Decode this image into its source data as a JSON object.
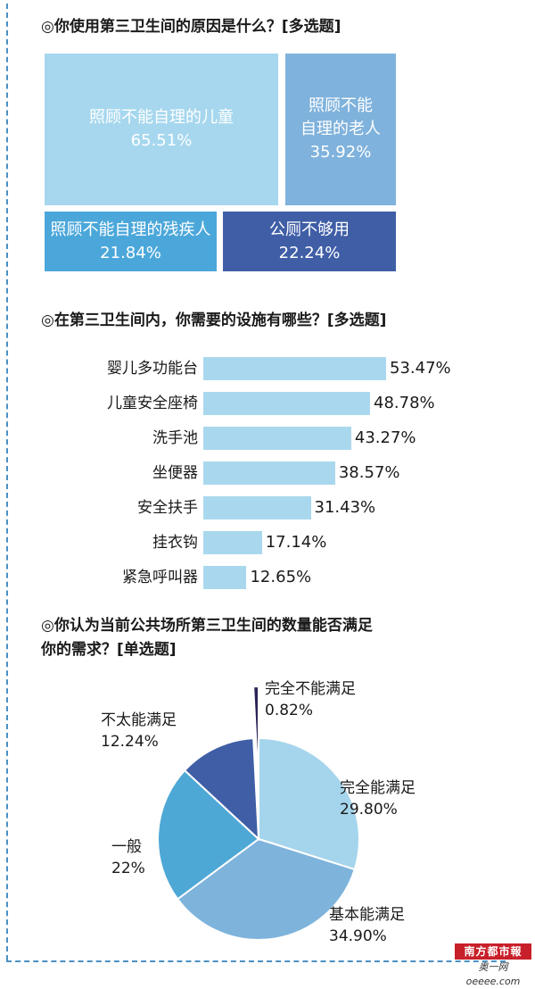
{
  "sections": {
    "q1_title": "◎你使用第三卫生间的原因是什么？[多选题]",
    "q2_title": "◎在第三卫生间内，你需要的设施有哪些？[多选题]",
    "q3_title_line1": "◎你认为当前公共场所第三卫生间的数量能否满足",
    "q3_title_line2": "你的需求？[单选题]"
  },
  "watermark": {
    "logo_text": "南方都市報",
    "sub_text": "奥一网oeeee.com"
  },
  "chart_data": [
    {
      "type": "treemap",
      "items": [
        {
          "label": "照顾不能自理的儿童",
          "value_text": "65.51%",
          "value": 65.51,
          "color": "#a6d7ee"
        },
        {
          "label": "照顾不能自理的老人",
          "label_line1": "照顾不能",
          "label_line2": "自理的老人",
          "value_text": "35.92%",
          "value": 35.92,
          "color": "#7fb2dc"
        },
        {
          "label": "照顾不能自理的残疾人",
          "value_text": "21.84%",
          "value": 21.84,
          "color": "#4ba7da"
        },
        {
          "label": "公厕不够用",
          "value_text": "22.24%",
          "value": 22.24,
          "color": "#3f5ea6"
        }
      ]
    },
    {
      "type": "bar",
      "orientation": "horizontal",
      "categories": [
        "婴儿多功能台",
        "儿童安全座椅",
        "洗手池",
        "坐便器",
        "安全扶手",
        "挂衣钩",
        "紧急呼叫器"
      ],
      "values": [
        53.47,
        48.78,
        43.27,
        38.57,
        31.43,
        17.14,
        12.65
      ],
      "value_labels": [
        "53.47%",
        "48.78%",
        "43.27%",
        "38.57%",
        "31.43%",
        "17.14%",
        "12.65%"
      ],
      "color": "#a9d8ee"
    },
    {
      "type": "pie",
      "slices": [
        {
          "label": "完全能满足",
          "value": 29.8,
          "value_text": "29.80%",
          "color": "#a5d5ec"
        },
        {
          "label": "基本能满足",
          "value": 34.9,
          "value_text": "34.90%",
          "color": "#7eb3dc"
        },
        {
          "label": "一般",
          "value": 22,
          "value_text": "22%",
          "color": "#4ea8d6"
        },
        {
          "label": "不太能满足",
          "value": 12.24,
          "value_text": "12.24%",
          "color": "#3f5ea6"
        },
        {
          "label": "完全不能满足",
          "value": 0.82,
          "value_text": "0.82%",
          "color": "#2b2458"
        }
      ]
    }
  ]
}
